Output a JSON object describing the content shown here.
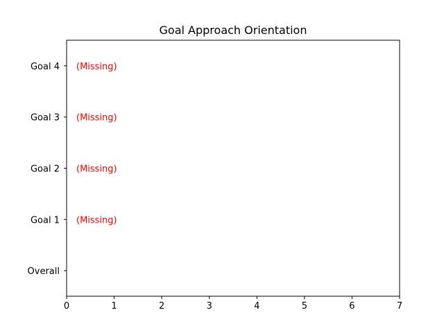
{
  "chart_data": {
    "type": "bar",
    "orientation": "horizontal",
    "title": "Goal Approach Orientation",
    "xlabel": "",
    "ylabel": "",
    "categories": [
      "Overall",
      "Goal 1",
      "Goal 2",
      "Goal 3",
      "Goal 4"
    ],
    "values": [
      0,
      0,
      0,
      0,
      0
    ],
    "xlim": [
      0,
      7
    ],
    "xticks": [
      0,
      1,
      2,
      3,
      4,
      5,
      6,
      7
    ],
    "grid": false,
    "legend": "none",
    "annotations": [
      {
        "category": "Goal 1",
        "text": "(Missing)"
      },
      {
        "category": "Goal 2",
        "text": "(Missing)"
      },
      {
        "category": "Goal 3",
        "text": "(Missing)"
      },
      {
        "category": "Goal 4",
        "text": "(Missing)"
      }
    ],
    "colors": {
      "annotation": "#ff0000",
      "axis": "#000000",
      "bar": "#1f77b4"
    }
  }
}
